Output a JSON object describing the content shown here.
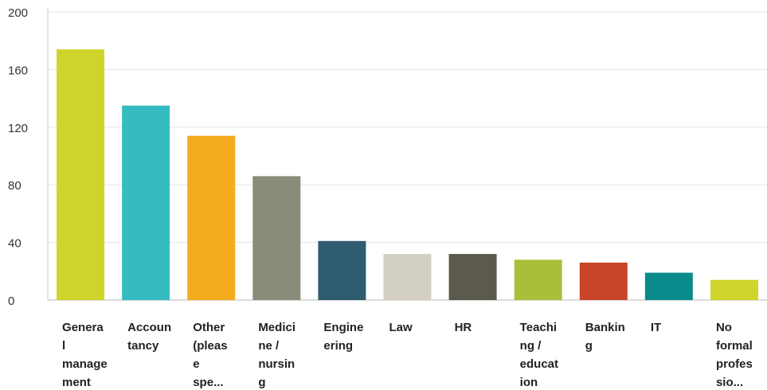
{
  "chart_data": {
    "type": "bar",
    "categories": [
      "General management",
      "Accountancy",
      "Other (please spe...",
      "Medicine / nursing",
      "Engineering",
      "Law",
      "HR",
      "Teaching / education",
      "Banking",
      "IT",
      "No formal professio..."
    ],
    "values": [
      174,
      135,
      114,
      86,
      41,
      32,
      32,
      28,
      26,
      19,
      14
    ],
    "colors": [
      "#cfd42a",
      "#35bcc0",
      "#f5ab1e",
      "#8a8b79",
      "#2f5c6e",
      "#d3d0c3",
      "#5b5a4c",
      "#a9bf3a",
      "#c8442a",
      "#0a8b8b",
      "#cfd42a"
    ],
    "ylim": [
      0,
      200
    ],
    "yticks": [
      0,
      40,
      80,
      120,
      160,
      200
    ],
    "grid": true
  }
}
